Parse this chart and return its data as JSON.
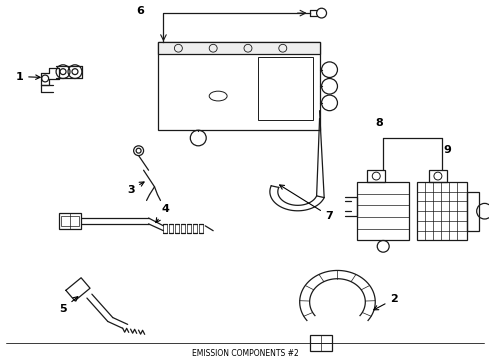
{
  "background_color": "#ffffff",
  "line_color": "#1a1a1a",
  "fig_width": 4.9,
  "fig_height": 3.6,
  "dpi": 100,
  "xlim": [
    0,
    490
  ],
  "ylim": [
    0,
    360
  ]
}
